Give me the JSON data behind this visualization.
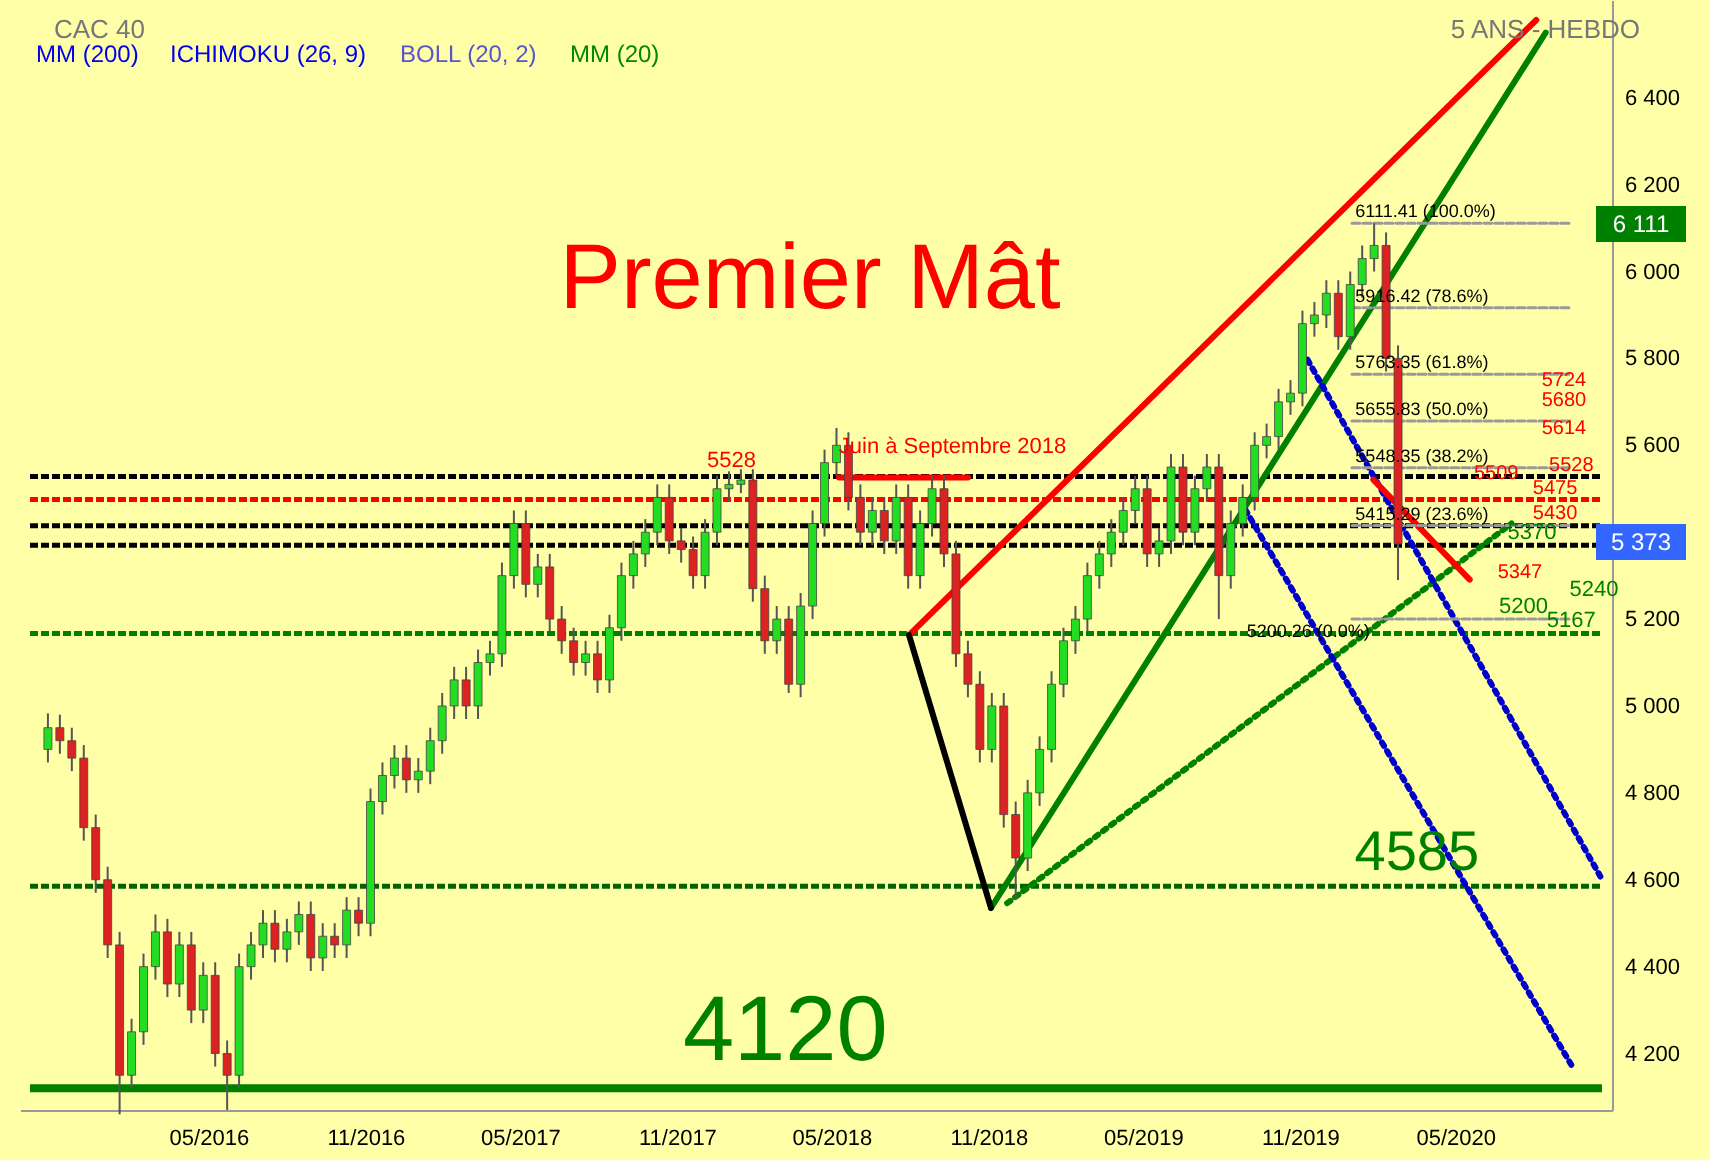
{
  "chart_data": {
    "type": "candlestick",
    "title": "CAC 40",
    "subtitle": "5 ANS - HEBDO",
    "x": [
      "2015-10-26",
      "2015-11-09",
      "2015-11-23",
      "2015-12-07",
      "2015-12-21",
      "2016-01-04",
      "2016-01-18",
      "2016-02-01",
      "2016-02-15",
      "2016-02-29",
      "2016-03-14",
      "2016-03-28",
      "2016-04-11",
      "2016-04-25",
      "2016-05-09",
      "2016-05-23",
      "2016-06-06",
      "2016-06-20",
      "2016-07-04",
      "2016-07-18",
      "2016-08-01",
      "2016-08-15",
      "2016-08-29",
      "2016-09-12",
      "2016-09-26",
      "2016-10-10",
      "2016-10-24",
      "2016-11-07",
      "2016-11-21",
      "2016-12-05",
      "2016-12-19",
      "2017-01-02",
      "2017-01-16",
      "2017-01-30",
      "2017-02-13",
      "2017-02-27",
      "2017-03-13",
      "2017-03-27",
      "2017-04-10",
      "2017-04-24",
      "2017-05-08",
      "2017-05-22",
      "2017-06-05",
      "2017-06-19",
      "2017-07-03",
      "2017-07-17",
      "2017-07-31",
      "2017-08-14",
      "2017-08-28",
      "2017-09-11",
      "2017-09-25",
      "2017-10-09",
      "2017-10-23",
      "2017-11-06",
      "2017-11-20",
      "2017-12-04",
      "2017-12-18",
      "2018-01-01",
      "2018-01-15",
      "2018-01-29",
      "2018-02-12",
      "2018-02-26",
      "2018-03-12",
      "2018-03-26",
      "2018-04-09",
      "2018-04-23",
      "2018-05-07",
      "2018-05-21",
      "2018-06-04",
      "2018-06-18",
      "2018-07-02",
      "2018-07-16",
      "2018-07-30",
      "2018-08-13",
      "2018-08-27",
      "2018-09-10",
      "2018-09-24",
      "2018-10-08",
      "2018-10-22",
      "2018-11-05",
      "2018-11-19",
      "2018-12-03",
      "2018-12-17",
      "2018-12-31",
      "2019-01-14",
      "2019-01-28",
      "2019-02-11",
      "2019-02-25",
      "2019-03-11",
      "2019-03-25",
      "2019-04-08",
      "2019-04-22",
      "2019-05-06",
      "2019-05-20",
      "2019-06-03",
      "2019-06-17",
      "2019-07-01",
      "2019-07-15",
      "2019-07-29",
      "2019-08-12",
      "2019-08-26",
      "2019-09-09",
      "2019-09-23",
      "2019-10-07",
      "2019-10-21",
      "2019-11-04",
      "2019-11-18",
      "2019-12-02",
      "2019-12-16",
      "2019-12-30",
      "2020-01-13",
      "2020-01-27",
      "2020-02-10",
      "2020-02-24"
    ],
    "ohlc": [
      [
        4900,
        4983,
        4870,
        4950
      ],
      [
        4950,
        4980,
        4890,
        4920
      ],
      [
        4920,
        4950,
        4850,
        4880
      ],
      [
        4880,
        4910,
        4690,
        4720
      ],
      [
        4720,
        4750,
        4570,
        4600
      ],
      [
        4600,
        4630,
        4420,
        4450
      ],
      [
        4450,
        4480,
        4060,
        4150
      ],
      [
        4150,
        4280,
        4120,
        4250
      ],
      [
        4250,
        4430,
        4220,
        4400
      ],
      [
        4400,
        4520,
        4370,
        4480
      ],
      [
        4480,
        4510,
        4330,
        4360
      ],
      [
        4360,
        4480,
        4330,
        4450
      ],
      [
        4450,
        4480,
        4270,
        4300
      ],
      [
        4300,
        4410,
        4270,
        4380
      ],
      [
        4380,
        4410,
        4170,
        4200
      ],
      [
        4200,
        4230,
        4070,
        4150
      ],
      [
        4150,
        4430,
        4120,
        4400
      ],
      [
        4400,
        4480,
        4370,
        4450
      ],
      [
        4450,
        4530,
        4420,
        4500
      ],
      [
        4500,
        4530,
        4410,
        4440
      ],
      [
        4440,
        4510,
        4410,
        4480
      ],
      [
        4480,
        4550,
        4450,
        4520
      ],
      [
        4520,
        4550,
        4390,
        4420
      ],
      [
        4420,
        4500,
        4390,
        4470
      ],
      [
        4470,
        4500,
        4420,
        4450
      ],
      [
        4450,
        4560,
        4420,
        4530
      ],
      [
        4530,
        4560,
        4470,
        4500
      ],
      [
        4500,
        4810,
        4470,
        4780
      ],
      [
        4780,
        4870,
        4750,
        4840
      ],
      [
        4840,
        4910,
        4810,
        4880
      ],
      [
        4880,
        4910,
        4800,
        4830
      ],
      [
        4830,
        4880,
        4800,
        4850
      ],
      [
        4850,
        4950,
        4820,
        4920
      ],
      [
        4920,
        5030,
        4890,
        5000
      ],
      [
        5000,
        5090,
        4970,
        5060
      ],
      [
        5060,
        5090,
        4970,
        5000
      ],
      [
        5000,
        5130,
        4970,
        5100
      ],
      [
        5100,
        5150,
        5070,
        5120
      ],
      [
        5120,
        5330,
        5090,
        5300
      ],
      [
        5300,
        5450,
        5270,
        5420
      ],
      [
        5420,
        5450,
        5250,
        5280
      ],
      [
        5280,
        5350,
        5250,
        5320
      ],
      [
        5320,
        5350,
        5170,
        5200
      ],
      [
        5200,
        5230,
        5120,
        5150
      ],
      [
        5150,
        5180,
        5070,
        5100
      ],
      [
        5100,
        5150,
        5070,
        5120
      ],
      [
        5120,
        5150,
        5030,
        5060
      ],
      [
        5060,
        5210,
        5030,
        5180
      ],
      [
        5180,
        5330,
        5150,
        5300
      ],
      [
        5300,
        5380,
        5270,
        5350
      ],
      [
        5350,
        5430,
        5320,
        5400
      ],
      [
        5400,
        5510,
        5370,
        5480
      ],
      [
        5480,
        5510,
        5350,
        5380
      ],
      [
        5380,
        5410,
        5330,
        5360
      ],
      [
        5360,
        5390,
        5270,
        5300
      ],
      [
        5300,
        5430,
        5270,
        5400
      ],
      [
        5400,
        5530,
        5370,
        5500
      ],
      [
        5500,
        5540,
        5470,
        5510
      ],
      [
        5510,
        5545,
        5490,
        5520
      ],
      [
        5520,
        5545,
        5240,
        5270
      ],
      [
        5270,
        5300,
        5120,
        5150
      ],
      [
        5150,
        5230,
        5120,
        5200
      ],
      [
        5200,
        5230,
        5030,
        5050
      ],
      [
        5050,
        5260,
        5020,
        5230
      ],
      [
        5230,
        5450,
        5200,
        5420
      ],
      [
        5420,
        5590,
        5390,
        5560
      ],
      [
        5560,
        5640,
        5530,
        5600
      ],
      [
        5600,
        5630,
        5450,
        5480
      ],
      [
        5480,
        5510,
        5370,
        5400
      ],
      [
        5400,
        5480,
        5370,
        5450
      ],
      [
        5450,
        5480,
        5350,
        5380
      ],
      [
        5380,
        5510,
        5350,
        5480
      ],
      [
        5480,
        5510,
        5270,
        5300
      ],
      [
        5300,
        5450,
        5270,
        5420
      ],
      [
        5420,
        5530,
        5390,
        5500
      ],
      [
        5500,
        5530,
        5320,
        5350
      ],
      [
        5350,
        5380,
        5090,
        5120
      ],
      [
        5120,
        5150,
        5020,
        5050
      ],
      [
        5050,
        5080,
        4870,
        4900
      ],
      [
        4900,
        5030,
        4870,
        5000
      ],
      [
        5000,
        5030,
        4720,
        4750
      ],
      [
        4750,
        4780,
        4555,
        4650
      ],
      [
        4650,
        4830,
        4620,
        4800
      ],
      [
        4800,
        4930,
        4770,
        4900
      ],
      [
        4900,
        5080,
        4870,
        5050
      ],
      [
        5050,
        5180,
        5020,
        5150
      ],
      [
        5150,
        5230,
        5120,
        5200
      ],
      [
        5200,
        5330,
        5170,
        5300
      ],
      [
        5300,
        5380,
        5270,
        5350
      ],
      [
        5350,
        5430,
        5320,
        5400
      ],
      [
        5400,
        5480,
        5370,
        5450
      ],
      [
        5450,
        5530,
        5420,
        5500
      ],
      [
        5500,
        5530,
        5320,
        5350
      ],
      [
        5350,
        5410,
        5320,
        5380
      ],
      [
        5380,
        5580,
        5350,
        5550
      ],
      [
        5550,
        5580,
        5370,
        5400
      ],
      [
        5400,
        5530,
        5370,
        5500
      ],
      [
        5500,
        5580,
        5470,
        5550
      ],
      [
        5550,
        5580,
        5200,
        5300
      ],
      [
        5300,
        5450,
        5270,
        5420
      ],
      [
        5420,
        5510,
        5390,
        5480
      ],
      [
        5480,
        5630,
        5450,
        5600
      ],
      [
        5600,
        5650,
        5570,
        5620
      ],
      [
        5620,
        5730,
        5590,
        5700
      ],
      [
        5700,
        5750,
        5670,
        5720
      ],
      [
        5720,
        5910,
        5690,
        5880
      ],
      [
        5880,
        5930,
        5850,
        5900
      ],
      [
        5900,
        5980,
        5870,
        5950
      ],
      [
        5950,
        5980,
        5820,
        5850
      ],
      [
        5850,
        6000,
        5820,
        5970
      ],
      [
        5970,
        6060,
        5940,
        6030
      ],
      [
        6030,
        6111,
        6000,
        6060
      ],
      [
        6060,
        6090,
        5770,
        5800
      ],
      [
        5800,
        5830,
        5290,
        5373
      ]
    ],
    "series": [
      {
        "type": "line",
        "color": "#ff0000",
        "line_style": "solid",
        "x": [
          "2018-07-31",
          "2020-08-04"
        ],
        "values": [
          5163,
          6579
        ]
      },
      {
        "type": "line",
        "color": "#008000",
        "line_style": "solid",
        "x": [
          "2018-11-04",
          "2020-08-15"
        ],
        "values": [
          4535,
          6550
        ]
      },
      {
        "type": "line",
        "color": "#008000",
        "line_style": "dotted",
        "x": [
          "2018-11-23",
          "2020-07-06"
        ],
        "values": [
          4546,
          5420
        ]
      },
      {
        "type": "line",
        "color": "#000000",
        "line_style": "solid",
        "x": [
          "2018-07-31",
          "2018-11-04"
        ],
        "values": [
          5163,
          4535
        ]
      },
      {
        "type": "line",
        "color": "#0000cc",
        "line_style": "dotted",
        "x": [
          "2019-11-10",
          "2020-10-20"
        ],
        "values": [
          5797,
          4601
        ]
      },
      {
        "type": "line",
        "color": "#0000cc",
        "line_style": "dotted",
        "x": [
          "2019-08-29",
          "2020-09-14"
        ],
        "values": [
          5452,
          4174
        ]
      },
      {
        "type": "line",
        "color": "#ff0000",
        "line_style": "solid",
        "x": [
          "2020-01-26",
          "2020-05-18"
        ],
        "values": [
          5521,
          5291
        ]
      },
      {
        "type": "line",
        "color": "#ff0000",
        "line_style": "solid",
        "x": [
          "2018-05-10",
          "2018-10-08"
        ],
        "values": [
          5526,
          5526
        ]
      },
      {
        "type": "line",
        "color": "#999999",
        "line_style": "dashed",
        "x": [
          "2020-01-01",
          "2020-09-14"
        ],
        "values": [
          6111.41,
          6111.41
        ]
      },
      {
        "type": "line",
        "color": "#999999",
        "line_style": "dashed",
        "x": [
          "2020-01-01",
          "2020-09-14"
        ],
        "values": [
          5916.42,
          5916.42
        ]
      },
      {
        "type": "line",
        "color": "#999999",
        "line_style": "dashed",
        "x": [
          "2020-01-01",
          "2020-09-14"
        ],
        "values": [
          5763.35,
          5763.35
        ]
      },
      {
        "type": "line",
        "color": "#999999",
        "line_style": "dashed",
        "x": [
          "2020-01-01",
          "2020-09-14"
        ],
        "values": [
          5655.83,
          5655.83
        ]
      },
      {
        "type": "line",
        "color": "#999999",
        "line_style": "dashed",
        "x": [
          "2020-01-01",
          "2020-09-14"
        ],
        "values": [
          5548.35,
          5548.35
        ]
      },
      {
        "type": "line",
        "color": "#999999",
        "line_style": "dashed",
        "x": [
          "2020-01-01",
          "2020-09-14"
        ],
        "values": [
          5415.29,
          5415.29
        ]
      },
      {
        "type": "line",
        "color": "#999999",
        "line_style": "dashed",
        "x": [
          "2020-01-01",
          "2020-09-14"
        ],
        "values": [
          5200.26,
          5200.26
        ]
      }
    ],
    "ref_lines": [
      {
        "axis": "y",
        "value": 4120,
        "color": "#008000",
        "line_style": "solid"
      },
      {
        "axis": "y",
        "value": 4585,
        "color": "#006400",
        "line_style": "dashed"
      },
      {
        "axis": "y",
        "value": 5167,
        "color": "#008000",
        "line_style": "dashed"
      },
      {
        "axis": "y",
        "value": 5528,
        "color": "#000000",
        "line_style": "dashed"
      },
      {
        "axis": "y",
        "value": 5475,
        "color": "#ff0000",
        "line_style": "dashed"
      },
      {
        "axis": "y",
        "value": 5415,
        "color": "#000000",
        "line_style": "dashed"
      },
      {
        "axis": "y",
        "value": 5370,
        "color": "#000000",
        "line_style": "dashed"
      }
    ],
    "annotations": [
      "MM (200)",
      "ICHIMOKU (26, 9)",
      "BOLL (20, 2)",
      "MM (20)",
      "Premier Mât",
      "6 111",
      "5 373",
      {
        "text": "4120",
        "x": "2018-03-08",
        "y": 4120
      },
      {
        "text": "4585",
        "x": "2020-03-17",
        "y": 4585
      },
      {
        "text": "5528",
        "x": "2018-01-04",
        "y": 5528
      },
      {
        "text": "Juin à Septembre 2018",
        "x": "2018-09-20",
        "y": 5526
      },
      {
        "text": "6111.41 (100.0%)",
        "x": "2020-01-05",
        "y": 6111.41
      },
      {
        "text": "5916.42 (78.6%)",
        "x": "2020-01-05",
        "y": 5916.42
      },
      {
        "text": "5763.35 (61.8%)",
        "x": "2020-01-05",
        "y": 5763.35
      },
      {
        "text": "5655.83 (50.0%)",
        "x": "2020-01-05",
        "y": 5655.83
      },
      {
        "text": "5548.35 (38.2%)",
        "x": "2020-01-05",
        "y": 5548.35
      },
      {
        "text": "5415.29 (23.6%)",
        "x": "2020-01-05",
        "y": 5415.29
      },
      {
        "text": "5200.26 (0.0%)",
        "x": "2020-01-22",
        "y": 5200.26
      },
      "5724",
      "5680",
      "5614",
      {
        "text": "5528",
        "x": "2020-09-14",
        "y": 5528
      },
      {
        "text": "5509",
        "x": "2020-06-18",
        "y": 5509
      },
      {
        "text": "5475",
        "x": "2020-08-26",
        "y": 5475
      },
      {
        "text": "5430",
        "x": "2020-08-26",
        "y": 5430
      },
      "5347",
      {
        "text": "5370",
        "x": "2020-07-30",
        "y": 5370
      },
      "5240",
      {
        "text": "5200",
        "x": "2020-07-20",
        "y": 5200
      },
      {
        "text": "5167",
        "x": "2020-09-14",
        "y": 5167
      }
    ],
    "xlim": [
      "2015-10-05",
      "2020-10-20"
    ],
    "xticks": [
      {
        "value": "2016-05-01",
        "label": "05/2016"
      },
      {
        "value": "2016-11-01",
        "label": "11/2016"
      },
      {
        "value": "2017-05-01",
        "label": "05/2017"
      },
      {
        "value": "2017-11-01",
        "label": "11/2017"
      },
      {
        "value": "2018-05-01",
        "label": "05/2018"
      },
      {
        "value": "2018-11-01",
        "label": "11/2018"
      },
      {
        "value": "2019-05-01",
        "label": "05/2019"
      },
      {
        "value": "2019-11-01",
        "label": "11/2019"
      },
      {
        "value": "2020-05-01",
        "label": "05/2020"
      }
    ],
    "ylim": [
      4070,
      6625
    ],
    "yticks": [
      {
        "value": 4200,
        "label": "4 200"
      },
      {
        "value": 4400,
        "label": "4 400"
      },
      {
        "value": 4600,
        "label": "4 600"
      },
      {
        "value": 4800,
        "label": "4 800"
      },
      {
        "value": 5000,
        "label": "5 000"
      },
      {
        "value": 5200,
        "label": "5 200"
      },
      {
        "value": 5600,
        "label": "5 600"
      },
      {
        "value": 5800,
        "label": "5 800"
      },
      {
        "value": 6000,
        "label": "6 000"
      },
      {
        "value": 6200,
        "label": "6 200"
      },
      {
        "value": 6400,
        "label": "6 400"
      }
    ]
  }
}
